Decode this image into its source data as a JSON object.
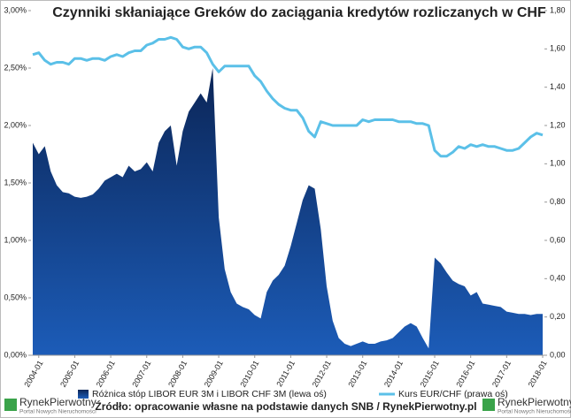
{
  "chart_data": {
    "type": "area-line",
    "title": "Czynniki skłaniające Greków do zaciągania kredytów rozliczanych w CHF",
    "categories": [
      null,
      "2004-01",
      null,
      null,
      null,
      null,
      null,
      "2005-01",
      null,
      null,
      null,
      null,
      null,
      "2006-01",
      null,
      null,
      null,
      null,
      null,
      "2007-01",
      null,
      null,
      null,
      null,
      null,
      "2008-01",
      null,
      null,
      null,
      null,
      null,
      "2009-01",
      null,
      null,
      null,
      null,
      null,
      "2010-01",
      null,
      null,
      null,
      null,
      null,
      "2011-01",
      null,
      null,
      null,
      null,
      null,
      "2012-01",
      null,
      null,
      null,
      null,
      null,
      "2013-01",
      null,
      null,
      null,
      null,
      null,
      "2014-01",
      null,
      null,
      null,
      null,
      null,
      "2015-01",
      null,
      null,
      null,
      null,
      null,
      "2016-01",
      null,
      null,
      null,
      null,
      null,
      "2017-01",
      null,
      null,
      null,
      null,
      null,
      "2018-01"
    ],
    "series": [
      {
        "name": "Różnica stóp LIBOR EUR 3M i LIBOR CHF 3M (lewa oś)",
        "color": "#1c5cb8",
        "axis": "y",
        "values": [
          1.85,
          1.75,
          1.82,
          1.6,
          1.48,
          1.42,
          1.41,
          1.38,
          1.37,
          1.38,
          1.4,
          1.45,
          1.52,
          1.55,
          1.58,
          1.55,
          1.65,
          1.6,
          1.62,
          1.68,
          1.6,
          1.85,
          1.95,
          2.0,
          1.65,
          1.95,
          2.12,
          2.2,
          2.28,
          2.2,
          2.5,
          1.2,
          0.75,
          0.55,
          0.45,
          0.42,
          0.4,
          0.35,
          0.32,
          0.55,
          0.65,
          0.7,
          0.78,
          0.95,
          1.15,
          1.35,
          1.48,
          1.45,
          1.1,
          0.6,
          0.3,
          0.15,
          0.1,
          0.08,
          0.1,
          0.12,
          0.1,
          0.1,
          0.12,
          0.13,
          0.15,
          0.2,
          0.25,
          0.28,
          0.25,
          0.15,
          0.06,
          0.85,
          0.8,
          0.72,
          0.65,
          0.62,
          0.6,
          0.52,
          0.55,
          0.45,
          0.44,
          0.43,
          0.42,
          0.38,
          0.37,
          0.36,
          0.36,
          0.35,
          0.36,
          0.36
        ]
      },
      {
        "name": "Kurs EUR/CHF (prawa oś)",
        "color": "#5bc0e8",
        "axis": "y2",
        "values": [
          1.57,
          1.58,
          1.54,
          1.52,
          1.53,
          1.53,
          1.52,
          1.55,
          1.55,
          1.54,
          1.55,
          1.55,
          1.54,
          1.56,
          1.57,
          1.56,
          1.58,
          1.59,
          1.59,
          1.62,
          1.63,
          1.65,
          1.65,
          1.66,
          1.65,
          1.61,
          1.6,
          1.61,
          1.61,
          1.58,
          1.52,
          1.48,
          1.51,
          1.51,
          1.51,
          1.51,
          1.51,
          1.46,
          1.43,
          1.38,
          1.34,
          1.31,
          1.29,
          1.28,
          1.28,
          1.24,
          1.17,
          1.14,
          1.22,
          1.21,
          1.2,
          1.2,
          1.2,
          1.2,
          1.2,
          1.23,
          1.22,
          1.23,
          1.23,
          1.23,
          1.23,
          1.22,
          1.22,
          1.22,
          1.21,
          1.21,
          1.2,
          1.07,
          1.04,
          1.04,
          1.06,
          1.09,
          1.08,
          1.1,
          1.09,
          1.1,
          1.09,
          1.09,
          1.08,
          1.07,
          1.07,
          1.08,
          1.11,
          1.14,
          1.16,
          1.15
        ]
      }
    ],
    "ylim": [
      0,
      3
    ],
    "yticks": [
      {
        "value": 0,
        "label": "0,00%"
      },
      {
        "value": 0.5,
        "label": "0,50%"
      },
      {
        "value": 1,
        "label": "1,00%"
      },
      {
        "value": 1.5,
        "label": "1,50%"
      },
      {
        "value": 2,
        "label": "2,00%"
      },
      {
        "value": 2.5,
        "label": "2,50%"
      },
      {
        "value": 3,
        "label": "3,00%"
      }
    ],
    "y2lim": [
      0,
      1.8
    ],
    "y2ticks": [
      {
        "value": 0,
        "label": "0,00"
      },
      {
        "value": 0.2,
        "label": "0,20"
      },
      {
        "value": 0.4,
        "label": "0,40"
      },
      {
        "value": 0.6,
        "label": "0,60"
      },
      {
        "value": 0.8,
        "label": "0,80"
      },
      {
        "value": 1,
        "label": "1,00"
      },
      {
        "value": 1.2,
        "label": "1,20"
      },
      {
        "value": 1.4,
        "label": "1,40"
      },
      {
        "value": 1.6,
        "label": "1,60"
      },
      {
        "value": 1.8,
        "label": "1,80"
      }
    ],
    "source": "Źródło: opracowanie własne na podstawie danych SNB / RynekPierwotny.pl"
  },
  "logo": {
    "name": "RynekPierwotny",
    "tagline": "Portal Nowych Nieruchomości"
  }
}
